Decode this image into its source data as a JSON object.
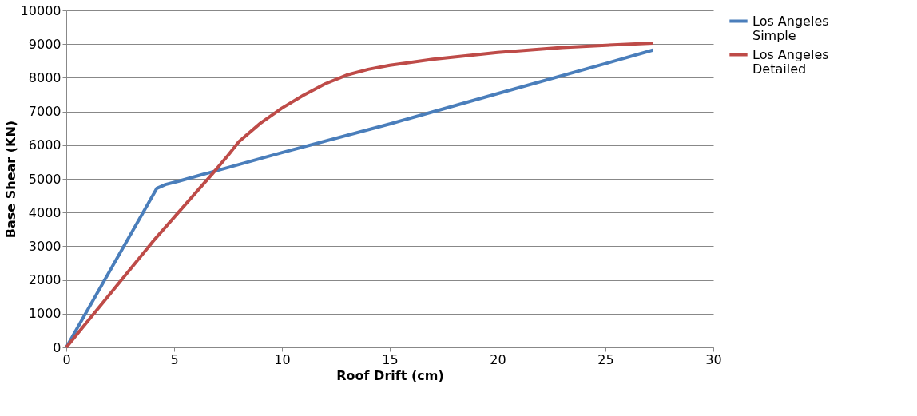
{
  "chart_data": {
    "type": "line",
    "xlabel": "Roof Drift (cm)",
    "ylabel": "Base Shear (KN)",
    "xlim": [
      0,
      30
    ],
    "xticks": [
      0,
      5,
      10,
      15,
      20,
      25,
      30
    ],
    "ylim": [
      0,
      10000
    ],
    "yticks": [
      0,
      1000,
      2000,
      3000,
      4000,
      5000,
      6000,
      7000,
      8000,
      9000,
      10000
    ],
    "grid": "y",
    "legend": "right",
    "marker": "none",
    "line_style": "solid",
    "series": [
      {
        "name": "Los Angeles Simple",
        "color": "#4a7ebb",
        "x": [
          0,
          4.2,
          4.6,
          5.2,
          10,
          15,
          20,
          25,
          27.2
        ],
        "values": [
          0,
          4720,
          4830,
          4930,
          5780,
          6630,
          7530,
          8420,
          8820
        ]
      },
      {
        "name": "Los Angeles Detailed",
        "color": "#be4b48",
        "x": [
          0,
          4,
          6.8,
          7.5,
          8,
          9,
          10,
          11,
          12,
          13,
          14,
          15,
          17,
          20,
          23,
          27.2
        ],
        "values": [
          0,
          3130,
          5170,
          5700,
          6100,
          6650,
          7100,
          7480,
          7820,
          8080,
          8250,
          8370,
          8550,
          8750,
          8900,
          9030
        ]
      }
    ]
  }
}
